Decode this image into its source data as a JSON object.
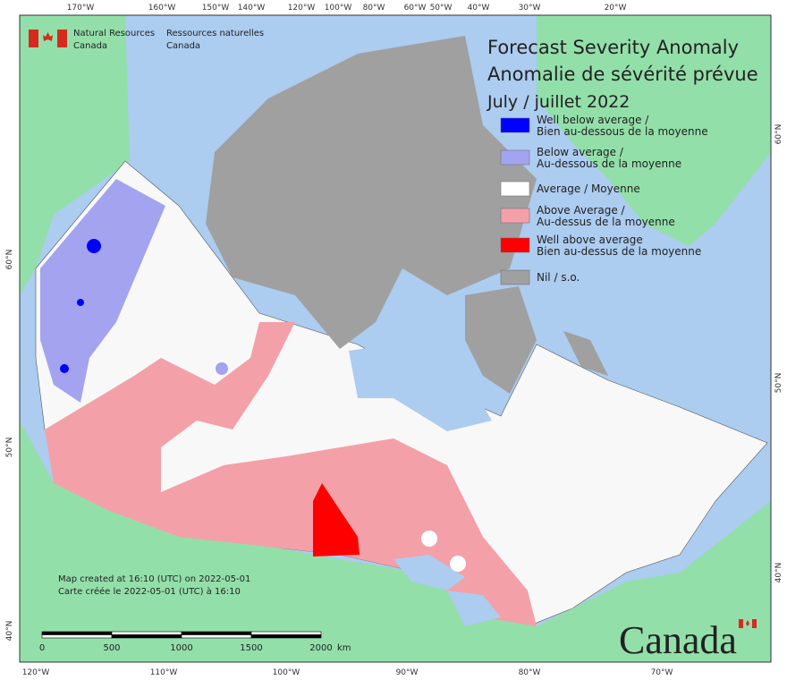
{
  "header": {
    "agency_en": [
      "Natural Resources",
      "Canada"
    ],
    "agency_fr": [
      "Ressources naturelles",
      "Canada"
    ]
  },
  "title": [
    "Forecast Severity Anomaly",
    "Anomalie de sévérité prévue"
  ],
  "period": "July / juillet 2022",
  "legend": [
    {
      "label": [
        "Well below average /",
        "Bien au-dessous de la moyenne"
      ],
      "color": "#0000ff"
    },
    {
      "label": [
        "Below average /",
        "Au-dessous de la moyenne"
      ],
      "color": "#a3a3f0"
    },
    {
      "label": [
        "Average / Moyenne"
      ],
      "color": "#ffffff"
    },
    {
      "label": [
        "Above Average /",
        "Au-dessus de la moyenne"
      ],
      "color": "#f4a0a8"
    },
    {
      "label": [
        "Well above average",
        "Bien au-dessus de la moyenne"
      ],
      "color": "#ff0000"
    },
    {
      "label": [
        "Nil / s.o."
      ],
      "color": "#a0a0a0"
    }
  ],
  "graticule": {
    "top": [
      "170°W",
      "160°W",
      "150°W",
      "140°W",
      "120°W",
      "100°W",
      "80°W",
      "60°W",
      "50°W",
      "40°W",
      "30°W",
      "20°W"
    ],
    "bottom": [
      "120°W",
      "110°W",
      "100°W",
      "90°W",
      "80°W",
      "70°W"
    ],
    "left": [
      "60°N",
      "50°N",
      "40°N"
    ],
    "right": [
      "60°N",
      "50°N",
      "40°N"
    ]
  },
  "credits": [
    "Map created at 16:10 (UTC) on 2022-05-01",
    "Carte créée le 2022-05-01 (UTC) à 16:10"
  ],
  "scale_bar": {
    "labels": [
      "0",
      "500",
      "1000",
      "1500",
      "2000"
    ],
    "unit": "km"
  },
  "wordmark": "Canada"
}
